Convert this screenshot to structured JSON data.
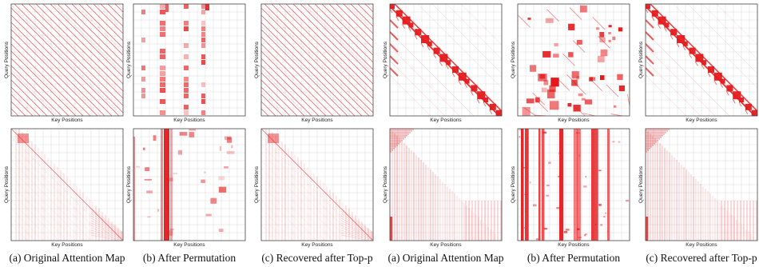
{
  "figure": {
    "panel_axis": {
      "xlabel": "Key Positions",
      "ylabel": "Query Positions"
    },
    "captions": [
      "(a) Original Attention Map",
      "(b) After Permutation",
      "(c) Recovered after Top-p",
      "(a) Original Attention Map",
      "(b) After Permutation",
      "(c) Recovered after Top-p"
    ],
    "colors": {
      "heat": "#e41a1c",
      "grid": "#cfcfcf",
      "frame": "#444444"
    },
    "panels": [
      {
        "name": "panel-row1-col1",
        "pattern": "striped-diagonals"
      },
      {
        "name": "panel-row1-col2",
        "pattern": "sparse-column-blocks"
      },
      {
        "name": "panel-row1-col3",
        "pattern": "striped-diagonals"
      },
      {
        "name": "panel-row1-col4",
        "pattern": "block-diagonal-band"
      },
      {
        "name": "panel-row1-col5",
        "pattern": "scattered-blocks"
      },
      {
        "name": "panel-row1-col6",
        "pattern": "block-diagonal-band"
      },
      {
        "name": "panel-row2-col1",
        "pattern": "lower-triangle-vertical-lines"
      },
      {
        "name": "panel-row2-col2",
        "pattern": "dense-columns-with-blocks"
      },
      {
        "name": "panel-row2-col3",
        "pattern": "lower-triangle-vertical-lines"
      },
      {
        "name": "panel-row2-col4",
        "pattern": "lower-triangle-gradient"
      },
      {
        "name": "panel-row2-col5",
        "pattern": "vertical-column-bands"
      },
      {
        "name": "panel-row2-col6",
        "pattern": "lower-triangle-gradient"
      }
    ]
  }
}
